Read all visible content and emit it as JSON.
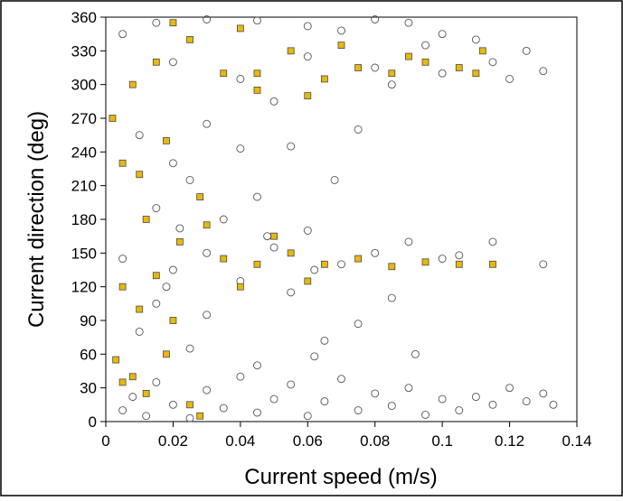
{
  "chart_data": {
    "type": "scatter",
    "title": "",
    "xlabel": "Current speed (m/s)",
    "ylabel": "Current direction (deg)",
    "xlim": [
      0,
      0.14
    ],
    "ylim": [
      0,
      360
    ],
    "xticks": [
      "0",
      "0.02",
      "0.04",
      "0.06",
      "0.08",
      "0.1",
      "0.12",
      "0.14"
    ],
    "yticks": [
      "0",
      "30",
      "60",
      "90",
      "120",
      "150",
      "180",
      "210",
      "240",
      "270",
      "300",
      "330",
      "360"
    ],
    "grid": false,
    "legend": "none",
    "series": [
      {
        "marker": "open-circle",
        "color": "#555555",
        "points": [
          [
            0.005,
            10
          ],
          [
            0.008,
            22
          ],
          [
            0.012,
            5
          ],
          [
            0.015,
            35
          ],
          [
            0.02,
            15
          ],
          [
            0.025,
            3
          ],
          [
            0.03,
            28
          ],
          [
            0.035,
            12
          ],
          [
            0.04,
            40
          ],
          [
            0.045,
            8
          ],
          [
            0.05,
            20
          ],
          [
            0.055,
            33
          ],
          [
            0.06,
            5
          ],
          [
            0.065,
            18
          ],
          [
            0.07,
            38
          ],
          [
            0.075,
            10
          ],
          [
            0.08,
            25
          ],
          [
            0.085,
            14
          ],
          [
            0.09,
            30
          ],
          [
            0.095,
            6
          ],
          [
            0.1,
            20
          ],
          [
            0.105,
            10
          ],
          [
            0.11,
            22
          ],
          [
            0.115,
            15
          ],
          [
            0.12,
            30
          ],
          [
            0.125,
            18
          ],
          [
            0.13,
            25
          ],
          [
            0.133,
            15
          ],
          [
            0.092,
            60
          ],
          [
            0.062,
            58
          ],
          [
            0.045,
            50
          ],
          [
            0.025,
            65
          ],
          [
            0.01,
            80
          ],
          [
            0.075,
            87
          ],
          [
            0.065,
            72
          ],
          [
            0.03,
            95
          ],
          [
            0.015,
            105
          ],
          [
            0.055,
            115
          ],
          [
            0.085,
            110
          ],
          [
            0.04,
            125
          ],
          [
            0.02,
            135
          ],
          [
            0.07,
            140
          ],
          [
            0.1,
            145
          ],
          [
            0.13,
            140
          ],
          [
            0.09,
            160
          ],
          [
            0.06,
            170
          ],
          [
            0.035,
            180
          ],
          [
            0.015,
            190
          ],
          [
            0.045,
            200
          ],
          [
            0.025,
            215
          ],
          [
            0.068,
            215
          ],
          [
            0.055,
            245
          ],
          [
            0.04,
            243
          ],
          [
            0.01,
            255
          ],
          [
            0.03,
            265
          ],
          [
            0.02,
            230
          ],
          [
            0.075,
            260
          ],
          [
            0.05,
            285
          ],
          [
            0.085,
            300
          ],
          [
            0.1,
            310
          ],
          [
            0.115,
            320
          ],
          [
            0.125,
            330
          ],
          [
            0.13,
            312
          ],
          [
            0.12,
            305
          ],
          [
            0.1,
            345
          ],
          [
            0.09,
            355
          ],
          [
            0.08,
            358
          ],
          [
            0.07,
            348
          ],
          [
            0.06,
            352
          ],
          [
            0.045,
            357
          ],
          [
            0.03,
            358
          ],
          [
            0.015,
            355
          ],
          [
            0.005,
            345
          ],
          [
            0.02,
            320
          ],
          [
            0.04,
            305
          ],
          [
            0.06,
            325
          ],
          [
            0.08,
            315
          ],
          [
            0.095,
            335
          ],
          [
            0.11,
            340
          ],
          [
            0.05,
            155
          ],
          [
            0.08,
            150
          ],
          [
            0.105,
            148
          ],
          [
            0.115,
            160
          ],
          [
            0.03,
            150
          ],
          [
            0.062,
            135
          ],
          [
            0.048,
            165
          ],
          [
            0.022,
            172
          ],
          [
            0.018,
            120
          ],
          [
            0.005,
            145
          ]
        ]
      },
      {
        "marker": "filled-square",
        "color": "#e8b80c",
        "points": [
          [
            0.002,
            270
          ],
          [
            0.008,
            300
          ],
          [
            0.015,
            320
          ],
          [
            0.025,
            340
          ],
          [
            0.035,
            310
          ],
          [
            0.045,
            295
          ],
          [
            0.055,
            330
          ],
          [
            0.065,
            305
          ],
          [
            0.075,
            315
          ],
          [
            0.085,
            310
          ],
          [
            0.095,
            320
          ],
          [
            0.105,
            315
          ],
          [
            0.112,
            330
          ],
          [
            0.06,
            290
          ],
          [
            0.04,
            350
          ],
          [
            0.02,
            355
          ],
          [
            0.01,
            220
          ],
          [
            0.018,
            250
          ],
          [
            0.028,
            200
          ],
          [
            0.005,
            230
          ],
          [
            0.012,
            180
          ],
          [
            0.022,
            160
          ],
          [
            0.035,
            145
          ],
          [
            0.045,
            140
          ],
          [
            0.055,
            150
          ],
          [
            0.065,
            140
          ],
          [
            0.075,
            145
          ],
          [
            0.085,
            138
          ],
          [
            0.095,
            142
          ],
          [
            0.105,
            140
          ],
          [
            0.115,
            140
          ],
          [
            0.05,
            165
          ],
          [
            0.03,
            175
          ],
          [
            0.015,
            130
          ],
          [
            0.005,
            120
          ],
          [
            0.01,
            100
          ],
          [
            0.02,
            90
          ],
          [
            0.003,
            55
          ],
          [
            0.008,
            40
          ],
          [
            0.012,
            25
          ],
          [
            0.005,
            35
          ],
          [
            0.025,
            15
          ],
          [
            0.028,
            5
          ],
          [
            0.06,
            125
          ],
          [
            0.04,
            120
          ],
          [
            0.018,
            60
          ],
          [
            0.045,
            310
          ],
          [
            0.09,
            325
          ],
          [
            0.11,
            310
          ],
          [
            0.07,
            335
          ]
        ]
      }
    ]
  }
}
